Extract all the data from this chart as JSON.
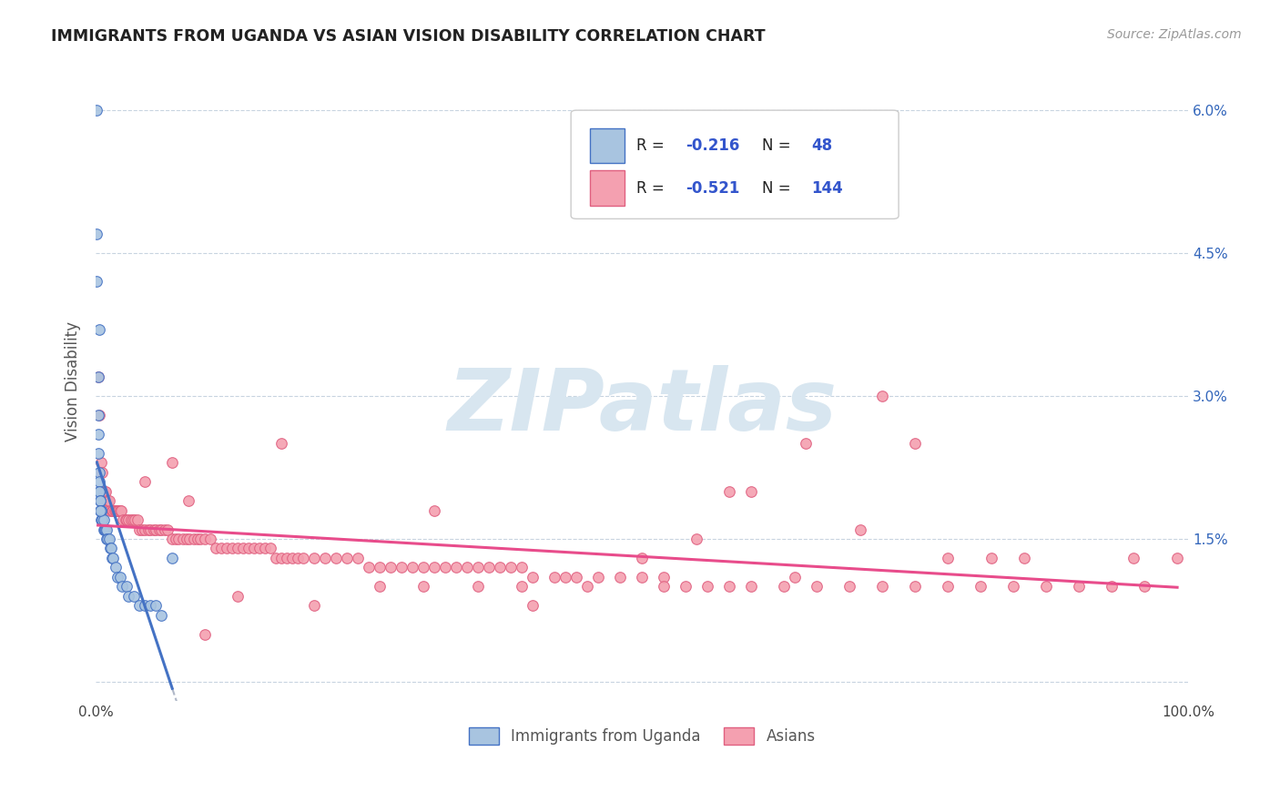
{
  "title": "IMMIGRANTS FROM UGANDA VS ASIAN VISION DISABILITY CORRELATION CHART",
  "source": "Source: ZipAtlas.com",
  "ylabel": "Vision Disability",
  "yticks": [
    0.0,
    0.015,
    0.03,
    0.045,
    0.06
  ],
  "ytick_labels": [
    "",
    "1.5%",
    "3.0%",
    "4.5%",
    "6.0%"
  ],
  "xlim": [
    0.0,
    1.0
  ],
  "ylim": [
    -0.002,
    0.065
  ],
  "color_uganda": "#a8c4e0",
  "color_asian": "#f4a0b0",
  "color_uganda_line": "#4472c4",
  "color_asian_line": "#e84c8b",
  "color_dashed_ext": "#b0b8c8",
  "watermark_color": "#d8e6f0",
  "uganda_points_x": [
    0.001,
    0.001,
    0.001,
    0.002,
    0.002,
    0.002,
    0.003,
    0.003,
    0.003,
    0.003,
    0.004,
    0.004,
    0.004,
    0.005,
    0.005,
    0.005,
    0.005,
    0.006,
    0.006,
    0.007,
    0.007,
    0.008,
    0.008,
    0.009,
    0.01,
    0.01,
    0.011,
    0.012,
    0.013,
    0.014,
    0.015,
    0.016,
    0.018,
    0.02,
    0.022,
    0.024,
    0.028,
    0.03,
    0.035,
    0.04,
    0.045,
    0.05,
    0.055,
    0.06,
    0.07,
    0.002,
    0.003,
    0.004
  ],
  "uganda_points_y": [
    0.06,
    0.047,
    0.042,
    0.032,
    0.028,
    0.026,
    0.022,
    0.021,
    0.02,
    0.02,
    0.019,
    0.019,
    0.018,
    0.018,
    0.018,
    0.018,
    0.017,
    0.017,
    0.017,
    0.017,
    0.016,
    0.016,
    0.016,
    0.016,
    0.016,
    0.015,
    0.015,
    0.015,
    0.014,
    0.014,
    0.013,
    0.013,
    0.012,
    0.011,
    0.011,
    0.01,
    0.01,
    0.009,
    0.009,
    0.008,
    0.008,
    0.008,
    0.008,
    0.007,
    0.013,
    0.024,
    0.037,
    0.018
  ],
  "asian_points_x": [
    0.002,
    0.003,
    0.005,
    0.006,
    0.007,
    0.008,
    0.009,
    0.01,
    0.011,
    0.012,
    0.013,
    0.015,
    0.016,
    0.017,
    0.018,
    0.019,
    0.02,
    0.021,
    0.022,
    0.023,
    0.025,
    0.027,
    0.028,
    0.03,
    0.032,
    0.034,
    0.036,
    0.038,
    0.04,
    0.042,
    0.045,
    0.048,
    0.05,
    0.053,
    0.055,
    0.058,
    0.06,
    0.063,
    0.066,
    0.07,
    0.073,
    0.076,
    0.08,
    0.083,
    0.086,
    0.09,
    0.093,
    0.096,
    0.1,
    0.105,
    0.11,
    0.115,
    0.12,
    0.125,
    0.13,
    0.135,
    0.14,
    0.145,
    0.15,
    0.155,
    0.16,
    0.165,
    0.17,
    0.175,
    0.18,
    0.185,
    0.19,
    0.2,
    0.21,
    0.22,
    0.23,
    0.24,
    0.25,
    0.26,
    0.27,
    0.28,
    0.29,
    0.3,
    0.31,
    0.32,
    0.33,
    0.34,
    0.35,
    0.36,
    0.37,
    0.38,
    0.39,
    0.4,
    0.42,
    0.44,
    0.46,
    0.48,
    0.5,
    0.52,
    0.54,
    0.56,
    0.58,
    0.6,
    0.63,
    0.66,
    0.69,
    0.72,
    0.75,
    0.78,
    0.81,
    0.84,
    0.87,
    0.9,
    0.93,
    0.96,
    0.99,
    0.72,
    0.6,
    0.5,
    0.4,
    0.3,
    0.2,
    0.1,
    0.55,
    0.45,
    0.35,
    0.65,
    0.75,
    0.85,
    0.13,
    0.26,
    0.39,
    0.52,
    0.78,
    0.64,
    0.43,
    0.31,
    0.17,
    0.07,
    0.045,
    0.085,
    0.58,
    0.7,
    0.82,
    0.95
  ],
  "asian_points_y": [
    0.032,
    0.028,
    0.023,
    0.022,
    0.02,
    0.02,
    0.02,
    0.019,
    0.019,
    0.019,
    0.018,
    0.018,
    0.018,
    0.018,
    0.018,
    0.018,
    0.018,
    0.018,
    0.018,
    0.018,
    0.017,
    0.017,
    0.017,
    0.017,
    0.017,
    0.017,
    0.017,
    0.017,
    0.016,
    0.016,
    0.016,
    0.016,
    0.016,
    0.016,
    0.016,
    0.016,
    0.016,
    0.016,
    0.016,
    0.015,
    0.015,
    0.015,
    0.015,
    0.015,
    0.015,
    0.015,
    0.015,
    0.015,
    0.015,
    0.015,
    0.014,
    0.014,
    0.014,
    0.014,
    0.014,
    0.014,
    0.014,
    0.014,
    0.014,
    0.014,
    0.014,
    0.013,
    0.013,
    0.013,
    0.013,
    0.013,
    0.013,
    0.013,
    0.013,
    0.013,
    0.013,
    0.013,
    0.012,
    0.012,
    0.012,
    0.012,
    0.012,
    0.012,
    0.012,
    0.012,
    0.012,
    0.012,
    0.012,
    0.012,
    0.012,
    0.012,
    0.012,
    0.011,
    0.011,
    0.011,
    0.011,
    0.011,
    0.011,
    0.011,
    0.01,
    0.01,
    0.01,
    0.01,
    0.01,
    0.01,
    0.01,
    0.01,
    0.01,
    0.01,
    0.01,
    0.01,
    0.01,
    0.01,
    0.01,
    0.01,
    0.013,
    0.03,
    0.02,
    0.013,
    0.008,
    0.01,
    0.008,
    0.005,
    0.015,
    0.01,
    0.01,
    0.025,
    0.025,
    0.013,
    0.009,
    0.01,
    0.01,
    0.01,
    0.013,
    0.011,
    0.011,
    0.018,
    0.025,
    0.023,
    0.021,
    0.019,
    0.02,
    0.016,
    0.013,
    0.013
  ]
}
